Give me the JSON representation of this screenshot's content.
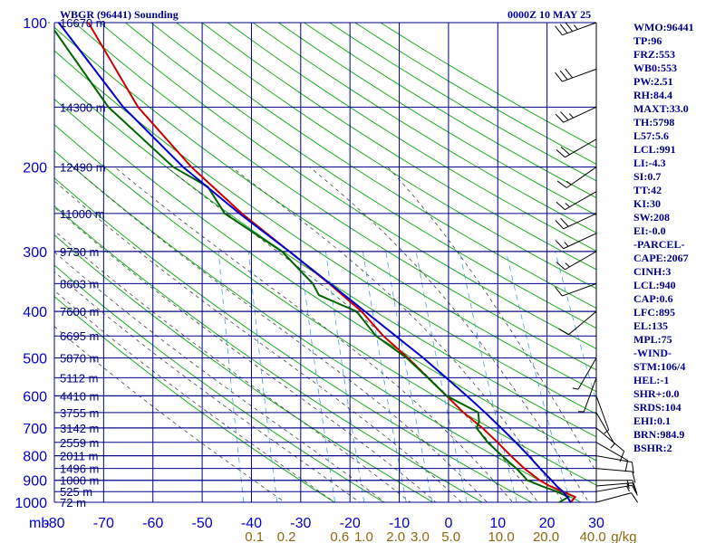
{
  "chart_data": {
    "type": "line",
    "title": "WBGR (96441) Sounding",
    "time_label": "0000Z 10 MAY 25",
    "units_label": "mb",
    "x_unit_label": "g/kg",
    "xlim": [
      -80,
      30
    ],
    "ylim": [
      1000,
      100
    ],
    "yscale": "log",
    "grid": true,
    "pressure_ticks": [
      100,
      200,
      300,
      400,
      500,
      600,
      700,
      800,
      900,
      1000
    ],
    "temperature_ticks": [
      -80,
      -70,
      -60,
      -50,
      -40,
      -30,
      -20,
      -10,
      0,
      10,
      20,
      30
    ],
    "height_levels": [
      {
        "p": 1000,
        "label": "72 m"
      },
      {
        "p": 950,
        "label": "525 m"
      },
      {
        "p": 900,
        "label": "1000 m"
      },
      {
        "p": 850,
        "label": "1496 m"
      },
      {
        "p": 800,
        "label": "2011 m"
      },
      {
        "p": 750,
        "label": "2559 m"
      },
      {
        "p": 700,
        "label": "3142 m"
      },
      {
        "p": 650,
        "label": "3755 m"
      },
      {
        "p": 600,
        "label": "4410 m"
      },
      {
        "p": 550,
        "label": "5112 m"
      },
      {
        "p": 500,
        "label": "5870 m"
      },
      {
        "p": 450,
        "label": "6695 m"
      },
      {
        "p": 400,
        "label": "7600 m"
      },
      {
        "p": 350,
        "label": "8603 m"
      },
      {
        "p": 300,
        "label": "9730 m"
      },
      {
        "p": 250,
        "label": "11000 m"
      },
      {
        "p": 200,
        "label": "12490 m"
      },
      {
        "p": 150,
        "label": "14300 m"
      },
      {
        "p": 100,
        "label": "16670 m"
      }
    ],
    "mixing_ratio_labels": [
      {
        "value": 0.1,
        "label": "0.1",
        "x": -39.4
      },
      {
        "value": 0.2,
        "label": "0.2",
        "x": -32.9
      },
      {
        "value": 0.6,
        "label": "0.6",
        "x": -22.1
      },
      {
        "value": 1.0,
        "label": "1.0",
        "x": -17.2
      },
      {
        "value": 2.0,
        "label": "2.0",
        "x": -10.7
      },
      {
        "value": 3.0,
        "label": "3.0",
        "x": -5.8
      },
      {
        "value": 5.0,
        "label": "5.0",
        "x": 0.5
      },
      {
        "value": 10.0,
        "label": "10.0",
        "x": 10.7
      },
      {
        "value": 20.0,
        "label": "20.0",
        "x": 19.8
      },
      {
        "value": 40.0,
        "label": "40.0",
        "x": 29.3
      }
    ],
    "series": [
      {
        "color": "#cc0000",
        "points": [
          [
            1000,
            24.8
          ],
          [
            975,
            25.6
          ],
          [
            950,
            23.0
          ],
          [
            925,
            20.2
          ],
          [
            900,
            18.0
          ],
          [
            850,
            14.6
          ],
          [
            800,
            11.6
          ],
          [
            750,
            8.6
          ],
          [
            700,
            5.2
          ],
          [
            650,
            1.0
          ],
          [
            600,
            -2.8
          ],
          [
            550,
            -7.0
          ],
          [
            500,
            -11.5
          ],
          [
            450,
            -17.0
          ],
          [
            400,
            -22.0
          ],
          [
            350,
            -29.2
          ],
          [
            300,
            -38.0
          ],
          [
            250,
            -48.5
          ],
          [
            200,
            -59.8
          ],
          [
            150,
            -72.0
          ],
          [
            100,
            -84.0
          ]
        ]
      },
      {
        "color": "#006400",
        "points": [
          [
            1000,
            22.5
          ],
          [
            975,
            24.2
          ],
          [
            950,
            21.8
          ],
          [
            925,
            18.5
          ],
          [
            900,
            15.5
          ],
          [
            850,
            13.0
          ],
          [
            800,
            9.8
          ],
          [
            750,
            6.6
          ],
          [
            700,
            4.0
          ],
          [
            680,
            4.4
          ],
          [
            650,
            4.0
          ],
          [
            600,
            -2.8
          ],
          [
            550,
            -7.0
          ],
          [
            500,
            -11.8
          ],
          [
            450,
            -18.5
          ],
          [
            400,
            -23.0
          ],
          [
            370,
            -31.0
          ],
          [
            350,
            -32.5
          ],
          [
            300,
            -39.5
          ],
          [
            250,
            -52.0
          ],
          [
            220,
            -56.0
          ],
          [
            200,
            -63.5
          ],
          [
            150,
            -78.0
          ],
          [
            100,
            -92.0
          ]
        ]
      },
      {
        "color": "#0000cd",
        "points": [
          [
            1000,
            24.8
          ],
          [
            975,
            24.0
          ],
          [
            950,
            23.0
          ],
          [
            925,
            21.6
          ],
          [
            900,
            20.4
          ],
          [
            850,
            17.8
          ],
          [
            800,
            15.2
          ],
          [
            750,
            12.3
          ],
          [
            700,
            9.0
          ],
          [
            650,
            5.4
          ],
          [
            600,
            1.3
          ],
          [
            550,
            -3.3
          ],
          [
            500,
            -8.4
          ],
          [
            450,
            -14.5
          ],
          [
            400,
            -21.3
          ],
          [
            350,
            -29.0
          ],
          [
            300,
            -38.0
          ],
          [
            250,
            -49.0
          ],
          [
            200,
            -61.5
          ],
          [
            150,
            -75.0
          ],
          [
            100,
            -90.0
          ]
        ]
      }
    ]
  },
  "indices": [
    "WMO:96441",
    "TP:96",
    "FRZ:553",
    "WB0:553",
    "PW:2.51",
    "RH:84.4",
    "MAXT:33.0",
    "TH:5798",
    "L57:5.6",
    "LCL:991",
    "LI:-4.3",
    "SI:0.7",
    "TT:42",
    "KI:30",
    "SW:208",
    "EI:-0.0",
    "-PARCEL-",
    "CAPE:2067",
    "CINH:3",
    "LCL:940",
    "CAP:0.6",
    "LFC:895",
    "EL:135",
    "MPL:75",
    "-WIND-",
    "STM:106/4",
    "HEL:-1",
    "SHR+:0.0",
    "SRDS:104",
    "EHI:0.1",
    "BRN:984.9",
    "BSHR:2"
  ],
  "wind_barbs": [
    {
      "p": 100,
      "dir": 250,
      "spd": 35
    },
    {
      "p": 125,
      "dir": 250,
      "spd": 30
    },
    {
      "p": 150,
      "dir": 245,
      "spd": 25
    },
    {
      "p": 175,
      "dir": 240,
      "spd": 20
    },
    {
      "p": 200,
      "dir": 235,
      "spd": 15
    },
    {
      "p": 225,
      "dir": 240,
      "spd": 15
    },
    {
      "p": 250,
      "dir": 245,
      "spd": 20
    },
    {
      "p": 275,
      "dir": 245,
      "spd": 15
    },
    {
      "p": 300,
      "dir": 240,
      "spd": 15
    },
    {
      "p": 350,
      "dir": 250,
      "spd": 10
    },
    {
      "p": 400,
      "dir": 230,
      "spd": 10
    },
    {
      "p": 500,
      "dir": 210,
      "spd": 5
    },
    {
      "p": 550,
      "dir": 200,
      "spd": 5
    },
    {
      "p": 600,
      "dir": 160,
      "spd": 5
    },
    {
      "p": 650,
      "dir": 150,
      "spd": 5
    },
    {
      "p": 700,
      "dir": 130,
      "spd": 10
    },
    {
      "p": 750,
      "dir": 120,
      "spd": 10
    },
    {
      "p": 800,
      "dir": 100,
      "spd": 10
    },
    {
      "p": 850,
      "dir": 95,
      "spd": 10
    },
    {
      "p": 900,
      "dir": 90,
      "spd": 15
    },
    {
      "p": 925,
      "dir": 85,
      "spd": 15
    },
    {
      "p": 950,
      "dir": 80,
      "spd": 15
    },
    {
      "p": 1000,
      "dir": 75,
      "spd": 10
    }
  ],
  "colors": {
    "isobar": "#00008b",
    "isotherm": "#00008b",
    "dry_adiabat": "#22aa22",
    "moist_adiabat": "#444444",
    "mixing_ratio": "#4aa0e0",
    "height_text": "#000080",
    "axis_text": "#0000cd",
    "mixing_text": "#8b6914"
  }
}
